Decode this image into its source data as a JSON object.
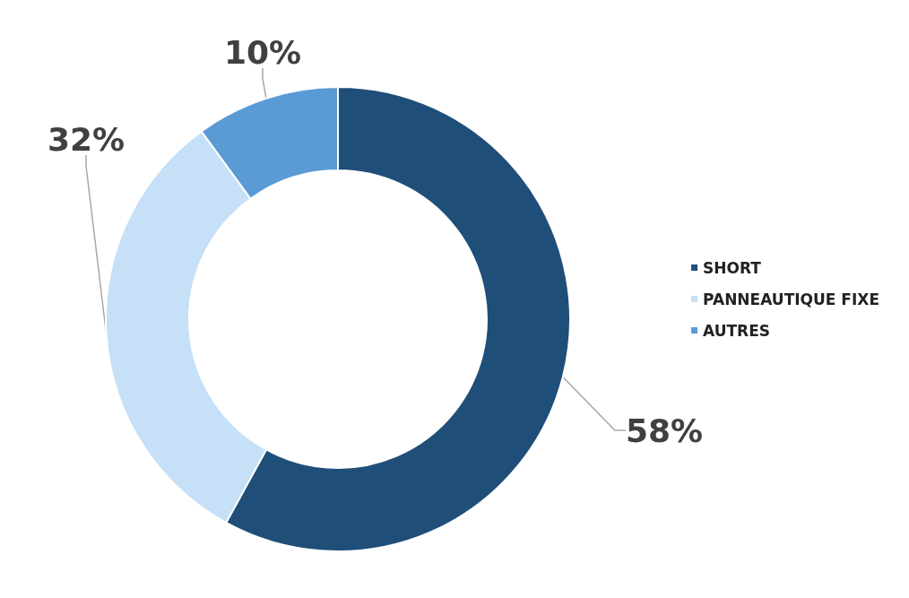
{
  "chart_data": {
    "type": "donut",
    "categories": [
      "SHORT",
      "PANNEAUTIQUE FIXE",
      "AUTRES"
    ],
    "values": [
      58,
      32,
      10
    ],
    "colors": [
      "#1f4e79",
      "#c5e0f7",
      "#5b9bd5"
    ],
    "value_labels": [
      "58%",
      "32%",
      "10%"
    ],
    "legend": "right"
  }
}
